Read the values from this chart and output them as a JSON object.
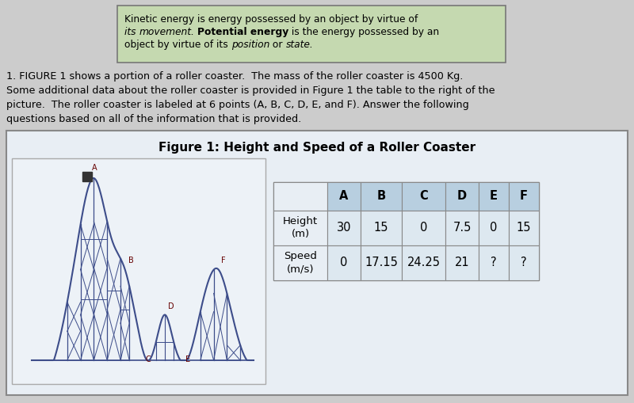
{
  "bg_color": "#cccccc",
  "box_color": "#c5d9b0",
  "figure_title": "Figure 1: Height and Speed of a Roller Coaster",
  "table_headers": [
    "",
    "A",
    "B",
    "C",
    "D",
    "E",
    "F"
  ],
  "table_row1_label": "Height\n(m)",
  "table_row1_values": [
    "30",
    "15",
    "0",
    "7.5",
    "0",
    "15"
  ],
  "table_row2_label": "Speed\n(m/s)",
  "table_row2_values": [
    "0",
    "17.15",
    "24.25",
    "21",
    "?",
    "?"
  ],
  "header_bg": "#b8cfe0",
  "table_bg_data": "#dde8f0",
  "figure_bg": "#e8eef4",
  "rc_color": "#3d4d8a",
  "rc_bg": "#e8eef4",
  "para_line1": "1. FIGURE 1 shows a portion of a roller coaster.  The mass of the roller coaster is 4500 Kg.",
  "para_line2": "Some additional data about the roller coaster is provided in Figure 1 the table to the right of the",
  "para_line3": "picture.  The roller coaster is labeled at 6 points (A, B, C, D, E, and F). Answer the following",
  "para_line4": "questions based on all of the information that is provided."
}
